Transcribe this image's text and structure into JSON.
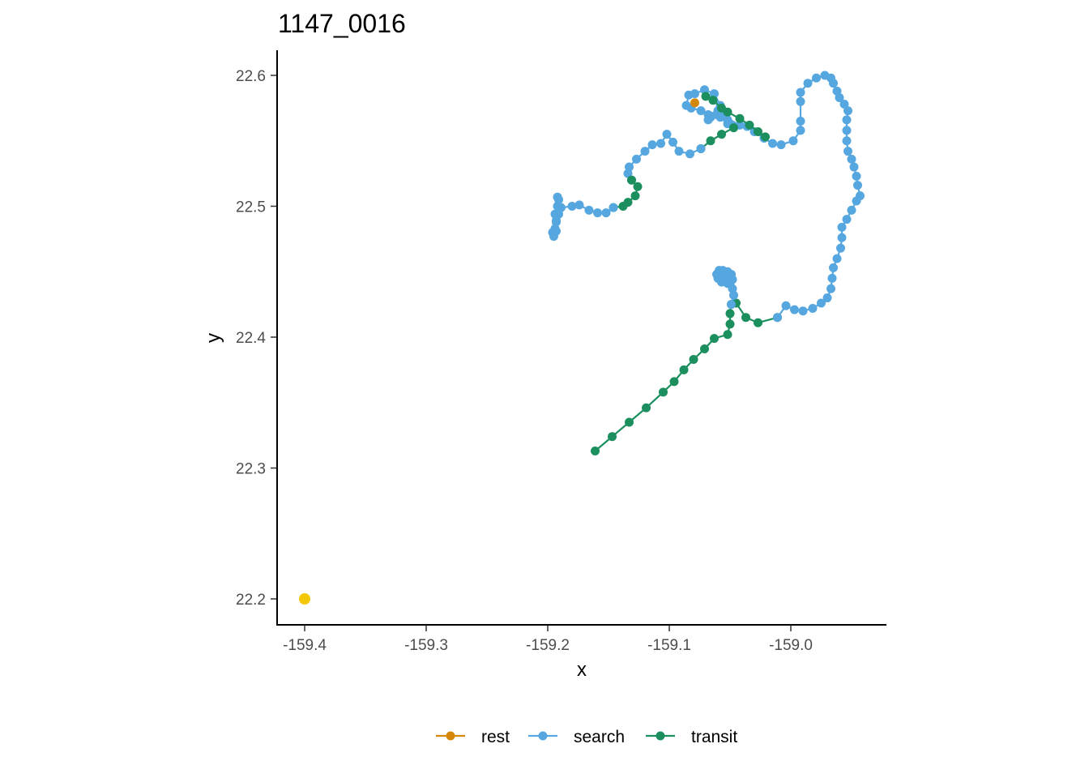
{
  "chart_data": {
    "type": "scatter",
    "title": "1147_0016",
    "xlabel": "x",
    "ylabel": "y",
    "xlim": [
      -159.422,
      -158.922
    ],
    "ylim": [
      22.18,
      22.62
    ],
    "x_ticks": [
      -159.4,
      -159.3,
      -159.2,
      -159.1,
      -159.0
    ],
    "x_tick_labels": [
      "-159.4",
      "-159.3",
      "-159.2",
      "-159.1",
      "-159.0"
    ],
    "y_ticks": [
      22.2,
      22.3,
      22.4,
      22.5,
      22.6
    ],
    "y_tick_labels": [
      "22.2",
      "22.3",
      "22.4",
      "22.5",
      "22.6"
    ],
    "grid": false,
    "legend_position": "bottom",
    "legend": [
      {
        "name": "rest",
        "color": "#D4870A"
      },
      {
        "name": "search",
        "color": "#56A7E0"
      },
      {
        "name": "transit",
        "color": "#1B8F5E"
      }
    ],
    "extra_points": [
      {
        "x": -159.4,
        "y": 22.2,
        "color": "#F4C800"
      }
    ],
    "series": [
      {
        "name": "transit",
        "color": "#1B8F5E",
        "points": [
          [
            -159.161,
            22.313
          ],
          [
            -159.147,
            22.324
          ],
          [
            -159.133,
            22.335
          ],
          [
            -159.119,
            22.346
          ],
          [
            -159.105,
            22.358
          ],
          [
            -159.096,
            22.366
          ],
          [
            -159.088,
            22.375
          ],
          [
            -159.08,
            22.383
          ],
          [
            -159.071,
            22.391
          ],
          [
            -159.063,
            22.399
          ],
          [
            -159.052,
            22.402
          ],
          [
            -159.05,
            22.41
          ],
          [
            -159.05,
            22.418
          ],
          [
            -159.049,
            22.425
          ],
          [
            -159.045,
            22.426
          ],
          [
            -159.037,
            22.415
          ],
          [
            -159.027,
            22.411
          ],
          [
            -159.011,
            22.415
          ]
        ]
      },
      {
        "name": "search",
        "color": "#56A7E0",
        "points": [
          [
            -159.011,
            22.415
          ],
          [
            -159.004,
            22.424
          ],
          [
            -158.997,
            22.421
          ],
          [
            -158.99,
            22.42
          ],
          [
            -158.982,
            22.422
          ],
          [
            -158.975,
            22.426
          ],
          [
            -158.97,
            22.43
          ],
          [
            -158.967,
            22.437
          ],
          [
            -158.966,
            22.445
          ],
          [
            -158.965,
            22.453
          ],
          [
            -158.962,
            22.46
          ],
          [
            -158.959,
            22.468
          ],
          [
            -158.958,
            22.476
          ],
          [
            -158.958,
            22.484
          ],
          [
            -158.954,
            22.49
          ],
          [
            -158.95,
            22.497
          ],
          [
            -158.946,
            22.504
          ],
          [
            -158.943,
            22.508
          ],
          [
            -158.945,
            22.516
          ],
          [
            -158.946,
            22.523
          ],
          [
            -158.948,
            22.53
          ],
          [
            -158.95,
            22.536
          ],
          [
            -158.953,
            22.542
          ],
          [
            -158.954,
            22.55
          ],
          [
            -158.954,
            22.558
          ],
          [
            -158.954,
            22.566
          ],
          [
            -158.953,
            22.573
          ],
          [
            -158.956,
            22.578
          ],
          [
            -158.96,
            22.583
          ],
          [
            -158.962,
            22.588
          ],
          [
            -158.965,
            22.594
          ],
          [
            -158.967,
            22.598
          ],
          [
            -158.972,
            22.6
          ],
          [
            -158.979,
            22.598
          ],
          [
            -158.986,
            22.594
          ],
          [
            -158.992,
            22.587
          ],
          [
            -158.992,
            22.58
          ],
          [
            -158.992,
            22.565
          ],
          [
            -158.992,
            22.558
          ],
          [
            -158.998,
            22.55
          ],
          [
            -159.008,
            22.547
          ],
          [
            -159.015,
            22.548
          ],
          [
            -159.022,
            22.552
          ],
          [
            -159.03,
            22.557
          ],
          [
            -159.036,
            22.561
          ],
          [
            -159.042,
            22.562
          ],
          [
            -159.048,
            22.562
          ],
          [
            -159.052,
            22.563
          ],
          [
            -159.058,
            22.568
          ],
          [
            -159.066,
            22.568
          ],
          [
            -159.074,
            22.573
          ],
          [
            -159.082,
            22.575
          ],
          [
            -159.086,
            22.577
          ],
          [
            -159.084,
            22.585
          ],
          [
            -159.079,
            22.586
          ],
          [
            -159.071,
            22.589
          ],
          [
            -159.063,
            22.586
          ],
          [
            -159.058,
            22.577
          ],
          [
            -159.061,
            22.57
          ],
          [
            -159.068,
            22.566
          ],
          [
            -159.068,
            22.57
          ],
          [
            -159.06,
            22.573
          ],
          [
            -159.054,
            22.57
          ],
          [
            -159.052,
            22.566
          ],
          [
            -159.05,
            22.563
          ],
          [
            -159.047,
            22.56
          ]
        ]
      },
      {
        "name": "transit",
        "color": "#1B8F5E",
        "points": [
          [
            -159.047,
            22.56
          ],
          [
            -159.057,
            22.555
          ],
          [
            -159.066,
            22.55
          ],
          [
            -159.074,
            22.544
          ]
        ]
      },
      {
        "name": "search",
        "color": "#56A7E0",
        "points": [
          [
            -159.074,
            22.544
          ],
          [
            -159.083,
            22.54
          ],
          [
            -159.092,
            22.542
          ],
          [
            -159.097,
            22.549
          ],
          [
            -159.102,
            22.555
          ],
          [
            -159.107,
            22.548
          ],
          [
            -159.114,
            22.547
          ],
          [
            -159.12,
            22.542
          ],
          [
            -159.127,
            22.536
          ],
          [
            -159.133,
            22.53
          ],
          [
            -159.134,
            22.525
          ],
          [
            -159.131,
            22.52
          ]
        ]
      },
      {
        "name": "transit",
        "color": "#1B8F5E",
        "points": [
          [
            -159.131,
            22.52
          ],
          [
            -159.126,
            22.515
          ],
          [
            -159.128,
            22.508
          ],
          [
            -159.134,
            22.503
          ],
          [
            -159.138,
            22.5
          ],
          [
            -159.146,
            22.499
          ]
        ]
      },
      {
        "name": "search",
        "color": "#56A7E0",
        "points": [
          [
            -159.146,
            22.499
          ],
          [
            -159.152,
            22.495
          ],
          [
            -159.159,
            22.495
          ],
          [
            -159.166,
            22.497
          ],
          [
            -159.174,
            22.501
          ],
          [
            -159.18,
            22.5
          ],
          [
            -159.189,
            22.499
          ],
          [
            -159.191,
            22.494
          ],
          [
            -159.193,
            22.489
          ],
          [
            -159.194,
            22.483
          ],
          [
            -159.196,
            22.48
          ],
          [
            -159.195,
            22.477
          ],
          [
            -159.193,
            22.481
          ],
          [
            -159.193,
            22.488
          ],
          [
            -159.194,
            22.494
          ],
          [
            -159.192,
            22.5
          ],
          [
            -159.191,
            22.505
          ],
          [
            -159.192,
            22.507
          ]
        ]
      },
      {
        "name": "transit",
        "color": "#1B8F5E",
        "points": [
          [
            -159.07,
            22.584
          ],
          [
            -159.064,
            22.581
          ],
          [
            -159.057,
            22.575
          ],
          [
            -159.052,
            22.572
          ],
          [
            -159.042,
            22.567
          ],
          [
            -159.034,
            22.562
          ],
          [
            -159.027,
            22.557
          ],
          [
            -159.021,
            22.553
          ]
        ]
      },
      {
        "name": "search",
        "color": "#56A7E0",
        "points": [
          [
            -159.049,
            22.425
          ],
          [
            -159.047,
            22.432
          ],
          [
            -159.048,
            22.437
          ],
          [
            -159.05,
            22.441
          ],
          [
            -159.053,
            22.444
          ],
          [
            -159.057,
            22.445
          ],
          [
            -159.061,
            22.448
          ],
          [
            -159.059,
            22.451
          ],
          [
            -159.056,
            22.451
          ],
          [
            -159.052,
            22.45
          ],
          [
            -159.049,
            22.448
          ],
          [
            -159.048,
            22.444
          ],
          [
            -159.052,
            22.441
          ],
          [
            -159.057,
            22.442
          ],
          [
            -159.06,
            22.445
          ],
          [
            -159.058,
            22.449
          ],
          [
            -159.053,
            22.447
          ]
        ]
      },
      {
        "name": "rest",
        "color": "#D4870A",
        "points": [
          [
            -159.079,
            22.579
          ]
        ]
      }
    ]
  }
}
